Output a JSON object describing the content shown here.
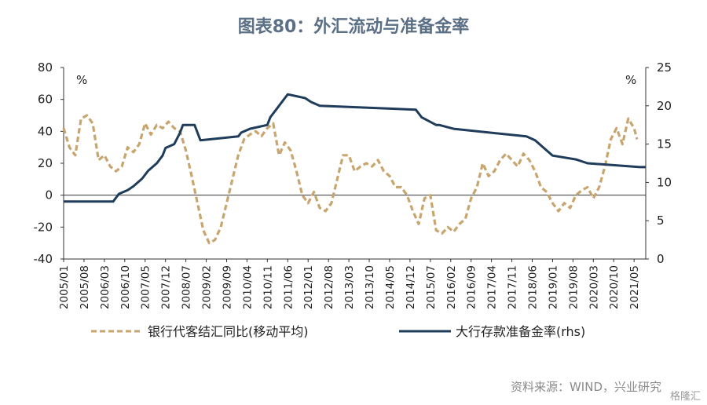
{
  "header": {
    "title": "图表80：外汇流动与准备金率"
  },
  "footer": {
    "source": "资料来源：WIND，兴业研究",
    "watermark": "格隆汇"
  },
  "chart_data": {
    "type": "line",
    "left_axis": {
      "unit_label": "%",
      "ylim": [
        -40,
        80
      ],
      "ticks": [
        80,
        60,
        40,
        20,
        0,
        -20,
        -40
      ]
    },
    "right_axis": {
      "unit_label": "%",
      "ylim": [
        0,
        25
      ],
      "ticks": [
        25,
        20,
        15,
        10,
        5,
        0
      ]
    },
    "x_tick_labels": [
      "2005/01",
      "2005/08",
      "2006/03",
      "2006/10",
      "2007/05",
      "2007/12",
      "2008/07",
      "2009/02",
      "2009/09",
      "2010/04",
      "2010/11",
      "2011/06",
      "2012/01",
      "2012/08",
      "2013/03",
      "2013/10",
      "2014/05",
      "2014/12",
      "2015/07",
      "2016/02",
      "2016/09",
      "2017/04",
      "2017/11",
      "2018/06",
      "2019/01",
      "2019/08",
      "2020/03",
      "2020/10",
      "2021/05"
    ],
    "x_range": [
      "2005/01",
      "2021/09"
    ],
    "series": [
      {
        "name": "银行代客结汇同比(移动平均)",
        "axis": "left",
        "style": "dashed",
        "color": "#c8a56e",
        "points": [
          [
            "2005/01",
            42
          ],
          [
            "2005/03",
            30
          ],
          [
            "2005/05",
            25
          ],
          [
            "2005/07",
            48
          ],
          [
            "2005/09",
            50
          ],
          [
            "2005/11",
            45
          ],
          [
            "2006/01",
            22
          ],
          [
            "2006/03",
            25
          ],
          [
            "2006/05",
            18
          ],
          [
            "2006/07",
            15
          ],
          [
            "2006/09",
            18
          ],
          [
            "2006/11",
            30
          ],
          [
            "2007/01",
            27
          ],
          [
            "2007/03",
            32
          ],
          [
            "2007/05",
            45
          ],
          [
            "2007/07",
            38
          ],
          [
            "2007/09",
            44
          ],
          [
            "2007/11",
            42
          ],
          [
            "2008/01",
            46
          ],
          [
            "2008/03",
            42
          ],
          [
            "2008/05",
            40
          ],
          [
            "2008/07",
            28
          ],
          [
            "2008/09",
            12
          ],
          [
            "2008/11",
            -5
          ],
          [
            "2009/01",
            -22
          ],
          [
            "2009/03",
            -30
          ],
          [
            "2009/05",
            -28
          ],
          [
            "2009/07",
            -20
          ],
          [
            "2009/09",
            -5
          ],
          [
            "2009/11",
            10
          ],
          [
            "2010/01",
            25
          ],
          [
            "2010/03",
            35
          ],
          [
            "2010/05",
            38
          ],
          [
            "2010/07",
            40
          ],
          [
            "2010/09",
            37
          ],
          [
            "2010/11",
            42
          ],
          [
            "2011/01",
            45
          ],
          [
            "2011/03",
            25
          ],
          [
            "2011/05",
            33
          ],
          [
            "2011/07",
            28
          ],
          [
            "2011/09",
            15
          ],
          [
            "2011/11",
            0
          ],
          [
            "2012/01",
            -5
          ],
          [
            "2012/03",
            2
          ],
          [
            "2012/05",
            -8
          ],
          [
            "2012/07",
            -10
          ],
          [
            "2012/09",
            -5
          ],
          [
            "2012/11",
            10
          ],
          [
            "2013/01",
            25
          ],
          [
            "2013/03",
            25
          ],
          [
            "2013/05",
            15
          ],
          [
            "2013/07",
            18
          ],
          [
            "2013/09",
            20
          ],
          [
            "2013/11",
            18
          ],
          [
            "2014/01",
            22
          ],
          [
            "2014/03",
            15
          ],
          [
            "2014/05",
            12
          ],
          [
            "2014/07",
            5
          ],
          [
            "2014/09",
            5
          ],
          [
            "2014/11",
            0
          ],
          [
            "2015/01",
            -10
          ],
          [
            "2015/03",
            -18
          ],
          [
            "2015/05",
            -2
          ],
          [
            "2015/07",
            0
          ],
          [
            "2015/09",
            -22
          ],
          [
            "2015/11",
            -24
          ],
          [
            "2016/01",
            -20
          ],
          [
            "2016/03",
            -23
          ],
          [
            "2016/05",
            -18
          ],
          [
            "2016/07",
            -15
          ],
          [
            "2016/09",
            -2
          ],
          [
            "2016/11",
            5
          ],
          [
            "2017/01",
            20
          ],
          [
            "2017/03",
            12
          ],
          [
            "2017/05",
            15
          ],
          [
            "2017/07",
            22
          ],
          [
            "2017/09",
            26
          ],
          [
            "2017/11",
            22
          ],
          [
            "2018/01",
            18
          ],
          [
            "2018/03",
            26
          ],
          [
            "2018/05",
            22
          ],
          [
            "2018/07",
            15
          ],
          [
            "2018/09",
            5
          ],
          [
            "2018/11",
            2
          ],
          [
            "2019/01",
            -5
          ],
          [
            "2019/03",
            -10
          ],
          [
            "2019/05",
            -5
          ],
          [
            "2019/07",
            -8
          ],
          [
            "2019/09",
            0
          ],
          [
            "2019/11",
            3
          ],
          [
            "2020/01",
            5
          ],
          [
            "2020/03",
            -2
          ],
          [
            "2020/05",
            5
          ],
          [
            "2020/07",
            18
          ],
          [
            "2020/09",
            35
          ],
          [
            "2020/11",
            42
          ],
          [
            "2021/01",
            32
          ],
          [
            "2021/03",
            48
          ],
          [
            "2021/05",
            42
          ],
          [
            "2021/06",
            35
          ]
        ]
      },
      {
        "name": "大行存款准备金率(rhs)",
        "axis": "right",
        "style": "solid",
        "color": "#1f3c5a",
        "points": [
          [
            "2005/01",
            7.5
          ],
          [
            "2006/06",
            7.5
          ],
          [
            "2006/07",
            8.0
          ],
          [
            "2006/08",
            8.5
          ],
          [
            "2006/11",
            9.0
          ],
          [
            "2007/01",
            9.5
          ],
          [
            "2007/04",
            10.5
          ],
          [
            "2007/06",
            11.5
          ],
          [
            "2007/09",
            12.5
          ],
          [
            "2007/11",
            13.5
          ],
          [
            "2007/12",
            14.5
          ],
          [
            "2008/03",
            15.0
          ],
          [
            "2008/05",
            16.5
          ],
          [
            "2008/06",
            17.5
          ],
          [
            "2008/10",
            17.5
          ],
          [
            "2008/11",
            16.5
          ],
          [
            "2008/12",
            15.5
          ],
          [
            "2010/01",
            16.0
          ],
          [
            "2010/02",
            16.5
          ],
          [
            "2010/05",
            17.0
          ],
          [
            "2010/11",
            17.5
          ],
          [
            "2010/12",
            18.5
          ],
          [
            "2011/03",
            20.0
          ],
          [
            "2011/05",
            21.0
          ],
          [
            "2011/06",
            21.5
          ],
          [
            "2011/12",
            21.0
          ],
          [
            "2012/02",
            20.5
          ],
          [
            "2012/05",
            20.0
          ],
          [
            "2015/02",
            19.5
          ],
          [
            "2015/04",
            18.5
          ],
          [
            "2015/09",
            17.5
          ],
          [
            "2015/10",
            17.5
          ],
          [
            "2016/03",
            17.0
          ],
          [
            "2018/04",
            16.0
          ],
          [
            "2018/07",
            15.5
          ],
          [
            "2018/10",
            14.5
          ],
          [
            "2019/01",
            13.5
          ],
          [
            "2019/09",
            13.0
          ],
          [
            "2020/01",
            12.5
          ],
          [
            "2021/07",
            12.0
          ],
          [
            "2021/09",
            12.0
          ]
        ]
      }
    ],
    "legend": {
      "position": "bottom"
    },
    "grid": false
  }
}
